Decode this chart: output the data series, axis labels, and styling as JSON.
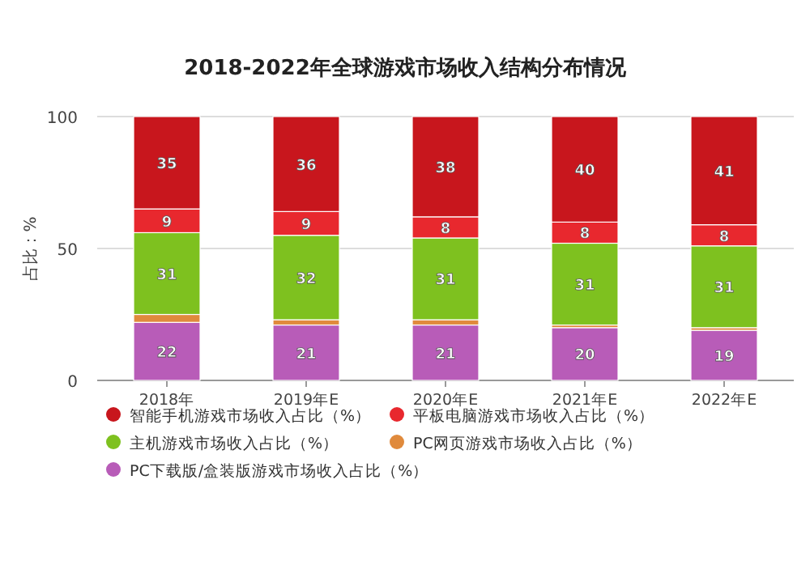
{
  "chart_data": {
    "type": "bar",
    "stacked": true,
    "title": "2018-2022年全球游戏市场收入结构分布情况",
    "ylabel": "占比：%",
    "categories": [
      "2018年",
      "2019年E",
      "2020年E",
      "2021年E",
      "2022年E"
    ],
    "series": [
      {
        "name": "PC下载版/盒装版游戏市场收入占比（%）",
        "color": "#b85cb8",
        "values": [
          22,
          21,
          21,
          20,
          19
        ],
        "value_labels": [
          "22",
          "21",
          "21",
          "20",
          "19"
        ]
      },
      {
        "name": "PC网页游戏市场收入占比（%）",
        "color": "#e08a3c",
        "values": [
          3,
          2,
          2,
          1,
          1
        ],
        "value_labels": [
          null,
          null,
          null,
          null,
          null
        ]
      },
      {
        "name": "主机游戏市场收入占比（%）",
        "color": "#7ec11f",
        "values": [
          31,
          32,
          31,
          31,
          31
        ],
        "value_labels": [
          "31",
          "32",
          "31",
          "31",
          "31"
        ]
      },
      {
        "name": "平板电脑游戏市场收入占比（%）",
        "color": "#e8282e",
        "values": [
          9,
          9,
          8,
          8,
          8
        ],
        "value_labels": [
          "9",
          "9",
          "8",
          "8",
          "8"
        ]
      },
      {
        "name": "智能手机游戏市场收入占比（%）",
        "color": "#c8161d",
        "values": [
          35,
          36,
          38,
          40,
          41
        ],
        "value_labels": [
          "35",
          "36",
          "38",
          "40",
          "41"
        ]
      }
    ],
    "ylim": [
      0,
      100
    ],
    "yticks": [
      0,
      50,
      100
    ],
    "grid": "y",
    "legend": "bottom"
  }
}
